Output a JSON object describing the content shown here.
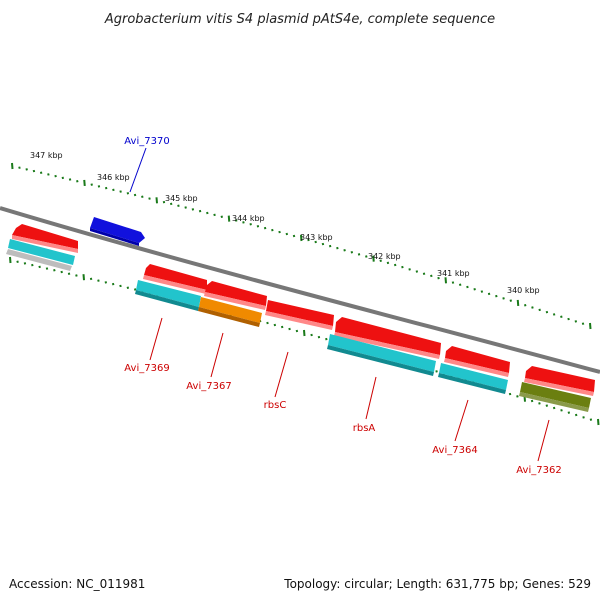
{
  "title": "Agrobacterium vitis S4 plasmid pAtS4e, complete sequence",
  "footer": {
    "accession": "Accession: NC_011981",
    "summary": "Topology: circular; Length: 631,775 bp; Genes: 529"
  },
  "scale_labels": [
    "347 kbp",
    "346 kbp",
    "345 kbp",
    "344 kbp",
    "343 kbp",
    "342 kbp",
    "341 kbp",
    "340 kbp"
  ],
  "gene_labels": [
    {
      "text": "Avi_7370",
      "color": "#0000cc"
    },
    {
      "text": "Avi_7369",
      "color": "#cc0000"
    },
    {
      "text": "Avi_7367",
      "color": "#cc0000"
    },
    {
      "text": "rbsC",
      "color": "#cc0000"
    },
    {
      "text": "rbsA",
      "color": "#cc0000"
    },
    {
      "text": "Avi_7364",
      "color": "#cc0000"
    },
    {
      "text": "Avi_7362",
      "color": "#cc0000"
    }
  ],
  "colors": {
    "cds": "#ee1111",
    "blue_gene": "#1111dd",
    "cyan_gene": "#22c4cc",
    "orange_gene": "#f08a00",
    "olive_gene": "#6b7f10",
    "grey_gene": "#bdbdbd",
    "backbone": "#777777",
    "ticks": "#1a7a1a"
  }
}
